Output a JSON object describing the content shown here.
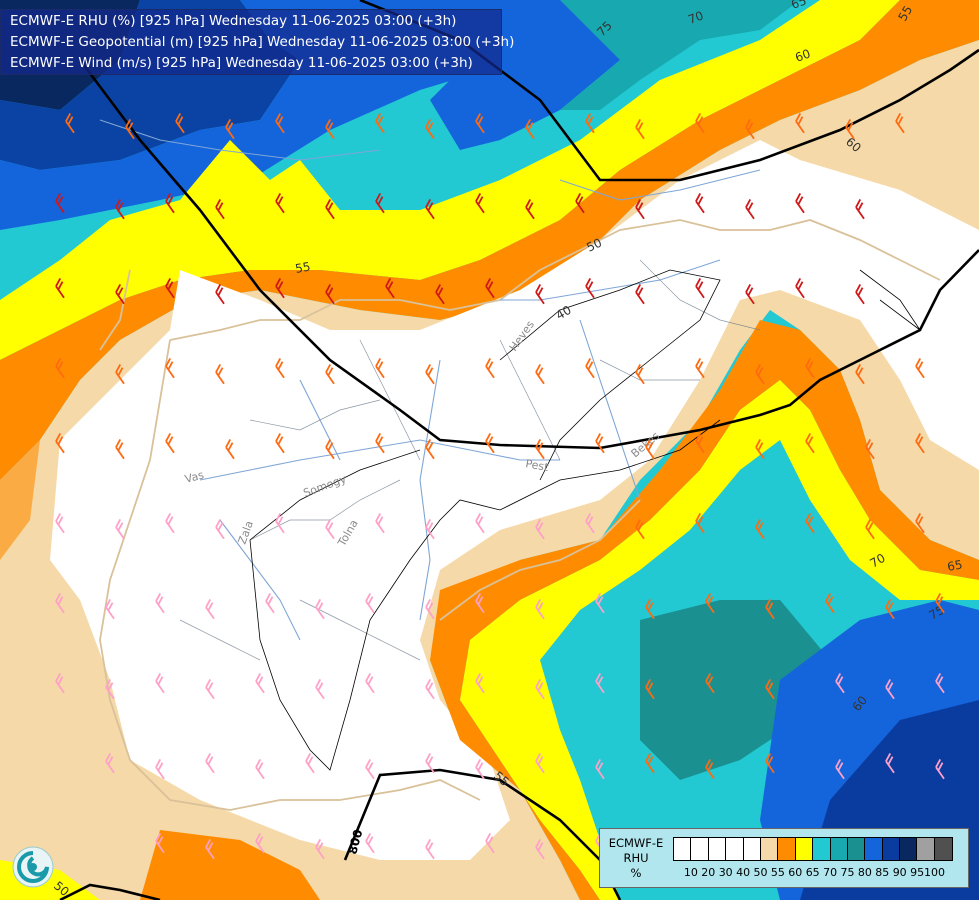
{
  "header": {
    "line1": "ECMWF-E RHU (%) [925 hPa] Wednesday 11-06-2025 03:00 (+3h)",
    "line2": "ECMWF-E Geopotential (m) [925 hPa] Wednesday 11-06-2025 03:00 (+3h)",
    "line3": "ECMWF-E Wind (m/s) [925 hPa] Wednesday 11-06-2025 03:00 (+3h)"
  },
  "legend": {
    "title": [
      "ECMWF-E",
      "RHU",
      "%"
    ],
    "ticks": [
      "10",
      "20",
      "30",
      "40",
      "50",
      "55",
      "60",
      "65",
      "70",
      "75",
      "80",
      "85",
      "90",
      "95",
      "100"
    ],
    "colors": [
      "#ffffff",
      "#ffffff",
      "#ffffff",
      "#ffffff",
      "#ffffff",
      "#f5d9a8",
      "#ff8c00",
      "#ffff00",
      "#22c8d2",
      "#18a8b0",
      "#1a9090",
      "#1464dc",
      "#0a3ca0",
      "#0a2860",
      "#a0a0a0",
      "#505050"
    ]
  },
  "map_labels": {
    "rhu_contours": [
      "75",
      "70",
      "65",
      "55",
      "60",
      "60",
      "55",
      "50",
      "40",
      "65",
      "70",
      "75",
      "60",
      "55",
      "50"
    ],
    "geopotential": "800",
    "places": [
      "Vas",
      "Somogy",
      "Zala",
      "Tolna",
      "Heves",
      "Pest",
      "Bekes"
    ]
  },
  "colors": {
    "c55": "#f5d9a8",
    "c60": "#ff8c00",
    "c65": "#ffff00",
    "c70": "#22c8d2",
    "c75": "#18a8b0",
    "c80": "#1a9090",
    "c85": "#1464dc",
    "c90": "#0a3ca0",
    "c95": "#0a2860",
    "barb_red": "#d01818",
    "barb_orange": "#ff6a10",
    "barb_pink": "#ffa0c8"
  }
}
